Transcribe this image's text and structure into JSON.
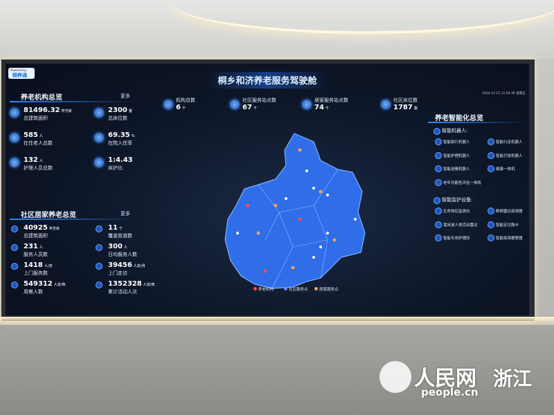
{
  "header": {
    "brand_caption": "Powered by",
    "brand": "颐养通",
    "title": "桐乡和济养老服务驾驶舱",
    "timestamp": "2024-11-15 11:04:36 星期五"
  },
  "institution_overview": {
    "title": "养老机构总览",
    "more": "更多",
    "stats": [
      {
        "value": "81496.32",
        "unit": "平方米",
        "label": "总建筑面积"
      },
      {
        "value": "2300",
        "unit": "张",
        "label": "总床位数"
      },
      {
        "value": "585",
        "unit": "人",
        "label": "在住老人总数"
      },
      {
        "value": "69.35",
        "unit": "%",
        "label": "在院入住率"
      },
      {
        "value": "132",
        "unit": "人",
        "label": "护理人员总数"
      },
      {
        "value": "1:4.43",
        "unit": "",
        "label": "床护比"
      }
    ]
  },
  "top_stats": [
    {
      "label": "机构总数",
      "value": "6",
      "unit": "个"
    },
    {
      "label": "社区服务站点数",
      "value": "67",
      "unit": "个"
    },
    {
      "label": "居家服务站点数",
      "value": "74",
      "unit": "个"
    },
    {
      "label": "社区床位数",
      "value": "1787",
      "unit": "张"
    }
  ],
  "community_overview": {
    "title": "社区居家养老总览",
    "more": "更多",
    "stats": [
      {
        "value": "40925",
        "unit": "平方米",
        "label": "总建筑面积"
      },
      {
        "value": "11",
        "unit": "个",
        "label": "覆盖街道数"
      },
      {
        "value": "231",
        "unit": "人",
        "label": "服务人员数"
      },
      {
        "value": "300",
        "unit": "人",
        "label": "日均服务人数"
      },
      {
        "value": "1418",
        "unit": "人/次",
        "label": "上门服务数"
      },
      {
        "value": "39456",
        "unit": "人次/月",
        "label": "上门走访"
      },
      {
        "value": "549312",
        "unit": "人次/年",
        "label": "用餐人数"
      },
      {
        "value": "1352328",
        "unit": "人次/年",
        "label": "累计活动人次"
      }
    ]
  },
  "smart_overview": {
    "title": "养老智能化总览",
    "groups": [
      {
        "title": "智能机器人:",
        "items": [
          "智能助行机器人",
          "智能行走机器人",
          "智能护理机器人",
          "智能打饭机器人",
          "智能送餐机器人",
          "健康一体机",
          "老年功能性评估一体机"
        ]
      },
      {
        "title": "智能监护设备:",
        "items": [
          "生命体征监测仪",
          "跌倒雷达探测器",
          "毫米波人体活动雷达",
          "智能定位胸卡",
          "智能专用护理床",
          "智能探测报警器"
        ]
      }
    ]
  },
  "map_legend": [
    "养老机构",
    "社区服务点",
    "居家服务点"
  ],
  "watermark": {
    "brand": "人民网",
    "region": "浙江",
    "site": "people.cn"
  }
}
